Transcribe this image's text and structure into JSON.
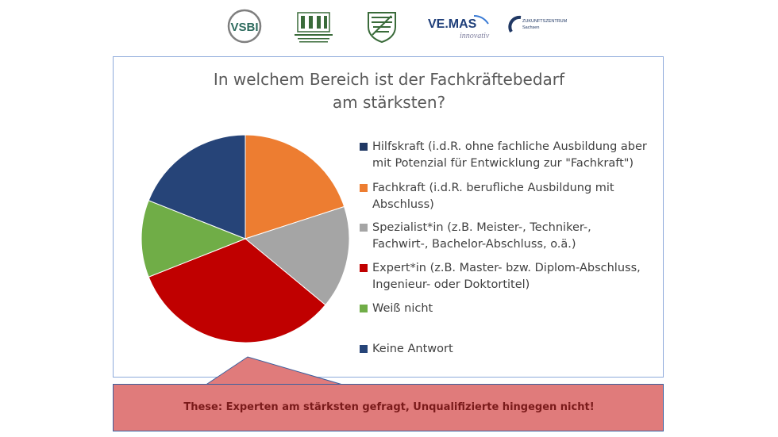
{
  "logos": {
    "vsbi": "VSBI",
    "vemas_top": "VE.MAS",
    "vemas_bottom": "innovativ",
    "zentrum_top": "ZUKUNFTSZENTRUM",
    "zentrum_bottom": "Sachsen"
  },
  "chart_data": {
    "type": "pie",
    "title_lines": [
      "In welchem Bereich ist der Fachkräftebedarf",
      "am stärksten?"
    ],
    "categories": [
      [
        "Hilfskraft (i.d.R. ohne fachliche Ausbildung aber",
        "mit Potenzial für Entwicklung zur \"Fachkraft\")"
      ],
      [
        "Fachkraft (i.d.R. berufliche Ausbildung mit",
        "Abschluss)"
      ],
      [
        "Spezialist*in (z.B. Meister-, Techniker-,",
        "Fachwirt-, Bachelor-Abschluss, o.ä.)"
      ],
      [
        "Expert*in (z.B. Master- bzw. Diplom-Abschluss,",
        "Ingenieur- oder Doktortitel)"
      ],
      [
        "Weiß nicht"
      ],
      [
        "Keine Antwort"
      ]
    ],
    "values": [
      0,
      20,
      16,
      33,
      12,
      19
    ],
    "colors": [
      "#203864",
      "#ed7d31",
      "#a5a5a5",
      "#c00000",
      "#70ad47",
      "#264478"
    ],
    "legend_position": "right"
  },
  "callout": {
    "text": "These: Experten am stärksten gefragt, Unqualifizierte hingegen nicht!",
    "fill": "#e07b7b",
    "border": "#3a5f9e"
  }
}
